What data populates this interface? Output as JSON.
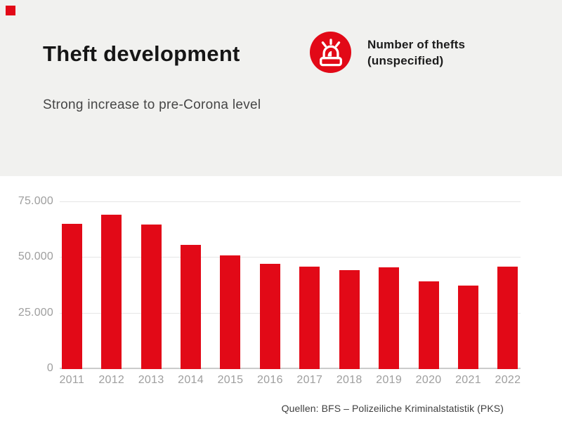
{
  "header": {
    "title": "Theft development",
    "subtitle": "Strong increase to pre-Corona level",
    "legend": {
      "icon": "siren-icon",
      "line1": "Number of thefts",
      "line2": "(unspecified)"
    }
  },
  "footer": {
    "source": "Quellen: BFS – Polizeiliche Kriminalstatistik (PKS)"
  },
  "brand": {
    "logo": "red-square-logo"
  },
  "colors": {
    "accent_red": "#e20917",
    "header_bg": "#f1f1ef",
    "title_text": "#161616",
    "subtitle_text": "#454545",
    "axis_text": "#9e9e9e",
    "gridline": "#e6e6e6",
    "axis_line": "#cbcbcb",
    "source_text": "#3f3f3f"
  },
  "chart_data": {
    "type": "bar",
    "title": "Theft development",
    "subtitle": "Strong increase to pre-Corona level",
    "series_name": "Number of thefts (unspecified)",
    "categories": [
      "2011",
      "2012",
      "2013",
      "2014",
      "2015",
      "2016",
      "2017",
      "2018",
      "2019",
      "2020",
      "2021",
      "2022"
    ],
    "values": [
      64700,
      69000,
      64500,
      55400,
      50600,
      47000,
      45500,
      44000,
      45400,
      39000,
      37000,
      45600
    ],
    "xlabel": "",
    "ylabel": "",
    "ylim": [
      0,
      78000
    ],
    "y_ticks": {
      "values": [
        0,
        25000,
        50000,
        75000
      ],
      "labels": [
        "0",
        "25.000",
        "50.000",
        "75.000"
      ]
    },
    "grid": true,
    "legend_position": "top-right",
    "bar_color": "#e20917",
    "source": "Quellen: BFS – Polizeiliche Kriminalstatistik (PKS)"
  }
}
